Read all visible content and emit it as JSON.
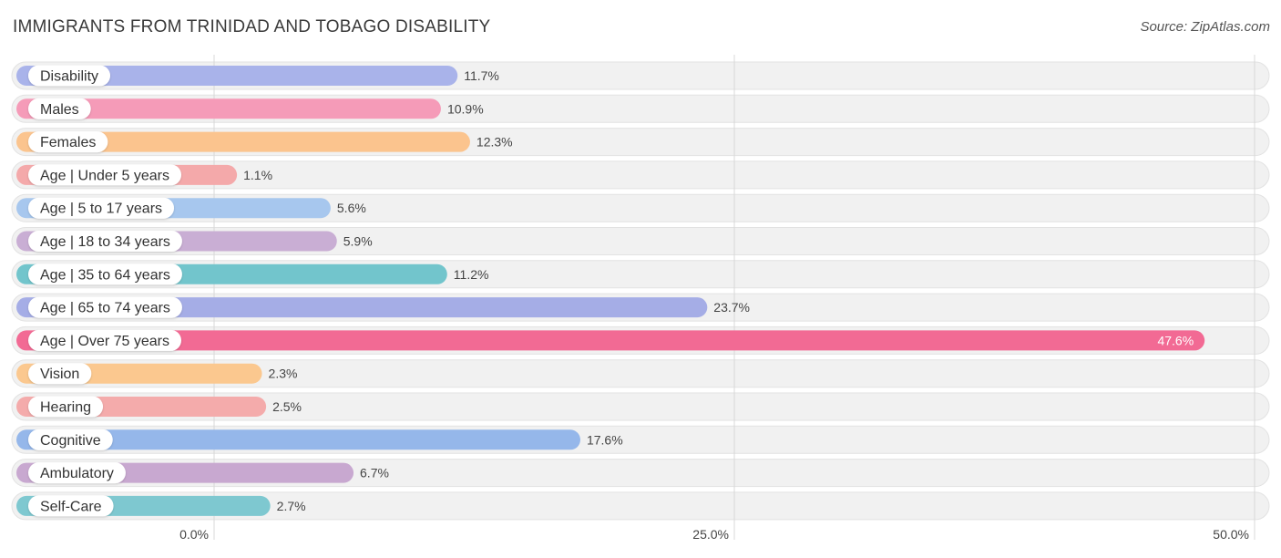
{
  "header": {
    "title": "IMMIGRANTS FROM TRINIDAD AND TOBAGO DISABILITY",
    "source": "Source: ZipAtlas.com"
  },
  "chart_data": {
    "type": "bar",
    "orientation": "horizontal",
    "title": "IMMIGRANTS FROM TRINIDAD AND TOBAGO DISABILITY",
    "xlim": [
      0,
      50
    ],
    "x_ticks": [
      0,
      25,
      50
    ],
    "x_tick_labels": [
      "0.0%",
      "25.0%",
      "50.0%"
    ],
    "grid": true,
    "categories": [
      "Disability",
      "Males",
      "Females",
      "Age | Under 5 years",
      "Age | 5 to 17 years",
      "Age | 18 to 34 years",
      "Age | 35 to 64 years",
      "Age | 65 to 74 years",
      "Age | Over 75 years",
      "Vision",
      "Hearing",
      "Cognitive",
      "Ambulatory",
      "Self-Care"
    ],
    "values": [
      11.7,
      10.9,
      12.3,
      1.1,
      5.6,
      5.9,
      11.2,
      23.7,
      47.6,
      2.3,
      2.5,
      17.6,
      6.7,
      2.7
    ],
    "value_labels": [
      "11.7%",
      "10.9%",
      "12.3%",
      "1.1%",
      "5.6%",
      "5.9%",
      "11.2%",
      "23.7%",
      "47.6%",
      "2.3%",
      "2.5%",
      "17.6%",
      "6.7%",
      "2.7%"
    ],
    "colors": [
      "#a9b3ea",
      "#f59bb8",
      "#fbc48e",
      "#f4a9aa",
      "#a7c7ee",
      "#c9aed4",
      "#72c5cc",
      "#a5ade6",
      "#f26a94",
      "#fbc88f",
      "#f4abab",
      "#95b7ea",
      "#c8a8d0",
      "#7ec8d0"
    ]
  }
}
